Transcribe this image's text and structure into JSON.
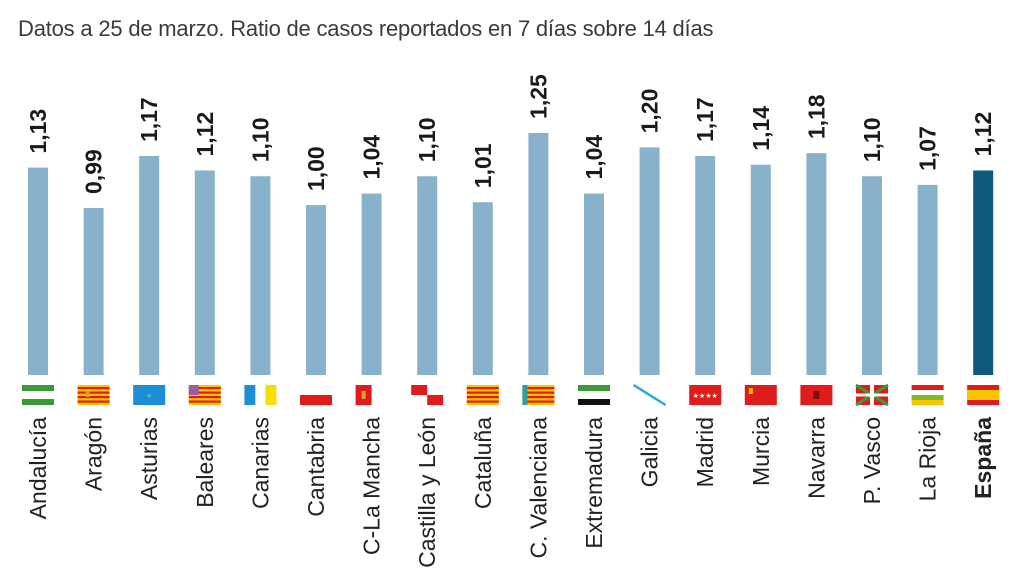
{
  "title": "Datos a 25 de marzo. Ratio de casos reportados en 7 días sobre 14 días",
  "chart_data": {
    "type": "bar",
    "title": "Datos a 25 de marzo. Ratio de casos reportados en 7 días sobre 14 días",
    "categories": [
      "Andalucía",
      "Aragón",
      "Asturias",
      "Baleares",
      "Canarias",
      "Cantabria",
      "C-La Mancha",
      "Castilla y León",
      "Cataluña",
      "C. Valenciana",
      "Extremadura",
      "Galicia",
      "Madrid",
      "Murcia",
      "Navarra",
      "P. Vasco",
      "La Rioja",
      "España"
    ],
    "values": [
      1.13,
      0.99,
      1.17,
      1.12,
      1.1,
      1.0,
      1.04,
      1.1,
      1.01,
      1.25,
      1.04,
      1.2,
      1.17,
      1.14,
      1.18,
      1.1,
      1.07,
      1.12
    ],
    "value_labels": [
      "1,13",
      "0,99",
      "1,17",
      "1,12",
      "1,10",
      "1,00",
      "1,04",
      "1,10",
      "1,01",
      "1,25",
      "1,04",
      "1,20",
      "1,17",
      "1,14",
      "1,18",
      "1,10",
      "1,07",
      "1,12"
    ],
    "flag_icons": [
      "andalucia-flag-icon",
      "aragon-flag-icon",
      "asturias-flag-icon",
      "baleares-flag-icon",
      "canarias-flag-icon",
      "cantabria-flag-icon",
      "castilla-la-mancha-flag-icon",
      "castilla-y-leon-flag-icon",
      "cataluna-flag-icon",
      "valenciana-flag-icon",
      "extremadura-flag-icon",
      "galicia-flag-icon",
      "madrid-flag-icon",
      "murcia-flag-icon",
      "navarra-flag-icon",
      "pais-vasco-flag-icon",
      "la-rioja-flag-icon",
      "espana-flag-icon"
    ],
    "highlight": "España",
    "colors": {
      "bar": "#88b1cc",
      "highlight": "#0f5a7c"
    },
    "xlabel": "",
    "ylabel": "",
    "ylim": [
      0.41,
      1.3
    ],
    "grid": false
  }
}
